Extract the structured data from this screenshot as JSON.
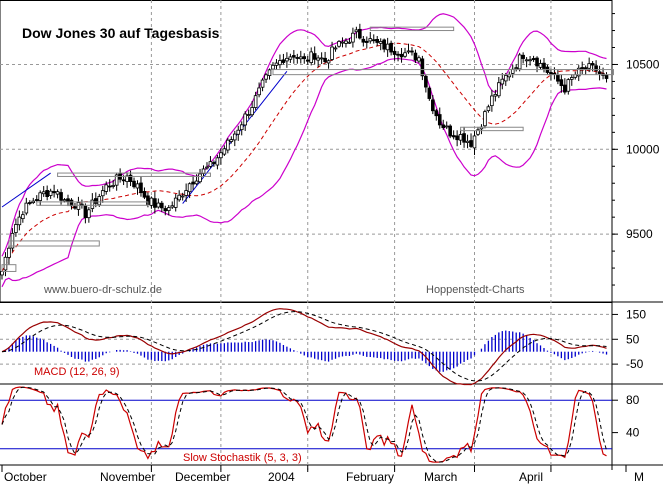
{
  "chart_data": {
    "type": "candlestick",
    "title": "Dow Jones 30 auf Tagesbasis",
    "watermark_left": "www.buero-dr-schulz.de",
    "watermark_right": "Hoppenstedt-Charts",
    "months": [
      "October",
      "November",
      "December",
      "2004",
      "February",
      "March",
      "April",
      "M"
    ],
    "price_panel": {
      "yticks": [
        "10500",
        "10000",
        "9500"
      ],
      "ytick_values": [
        10500,
        10000,
        9500
      ],
      "ylim": [
        9100,
        10880
      ],
      "price_path": [
        [
          0,
          9280
        ],
        [
          3,
          9520
        ],
        [
          6,
          9640
        ],
        [
          9,
          9700
        ],
        [
          12,
          9740
        ],
        [
          15,
          9760
        ],
        [
          18,
          9700
        ],
        [
          21,
          9680
        ],
        [
          24,
          9620
        ],
        [
          27,
          9700
        ],
        [
          30,
          9780
        ],
        [
          33,
          9820
        ],
        [
          36,
          9840
        ],
        [
          39,
          9780
        ],
        [
          42,
          9700
        ],
        [
          45,
          9660
        ],
        [
          48,
          9650
        ],
        [
          51,
          9720
        ],
        [
          54,
          9800
        ],
        [
          57,
          9860
        ],
        [
          60,
          9900
        ],
        [
          63,
          9980
        ],
        [
          66,
          10060
        ],
        [
          69,
          10160
        ],
        [
          72,
          10260
        ],
        [
          75,
          10380
        ],
        [
          78,
          10480
        ],
        [
          81,
          10540
        ],
        [
          84,
          10560
        ],
        [
          87,
          10520
        ],
        [
          90,
          10560
        ],
        [
          93,
          10520
        ],
        [
          96,
          10600
        ],
        [
          99,
          10640
        ],
        [
          102,
          10680
        ],
        [
          105,
          10650
        ],
        [
          108,
          10620
        ],
        [
          111,
          10600
        ],
        [
          114,
          10580
        ],
        [
          117,
          10560
        ],
        [
          120,
          10540
        ],
        [
          123,
          10300
        ],
        [
          126,
          10160
        ],
        [
          129,
          10100
        ],
        [
          132,
          10080
        ],
        [
          135,
          10040
        ],
        [
          138,
          10160
        ],
        [
          141,
          10300
        ],
        [
          144,
          10400
        ],
        [
          147,
          10480
        ],
        [
          150,
          10560
        ],
        [
          153,
          10540
        ],
        [
          156,
          10480
        ],
        [
          159,
          10420
        ],
        [
          162,
          10360
        ],
        [
          165,
          10440
        ],
        [
          168,
          10480
        ],
        [
          171,
          10470
        ],
        [
          174,
          10400
        ]
      ]
    },
    "macd_panel": {
      "label": "MACD (12, 26, 9)",
      "yticks": [
        "150",
        "50",
        "-50"
      ],
      "ytick_values": [
        150,
        50,
        -50
      ],
      "ylim": [
        -130,
        200
      ]
    },
    "stoch_panel": {
      "label": "Slow Stochastik (5, 3, 3)",
      "yticks": [
        "80",
        "40"
      ],
      "ytick_values": [
        80,
        40
      ],
      "ylim": [
        0,
        100
      ],
      "bands": [
        80,
        20
      ]
    },
    "colors": {
      "candles": "#000000",
      "bollinger": "#cc00cc",
      "moving_average": "#cc0000",
      "macd_line": "#990000",
      "macd_histogram": "#0000cc",
      "stoch_k": "#cc0000",
      "stoch_d": "#000000",
      "stoch_bands": "#0000cc",
      "grid": "#999999",
      "title_text": "#000000",
      "indicator_label": "#cc0000",
      "watermark": "#555555"
    }
  }
}
